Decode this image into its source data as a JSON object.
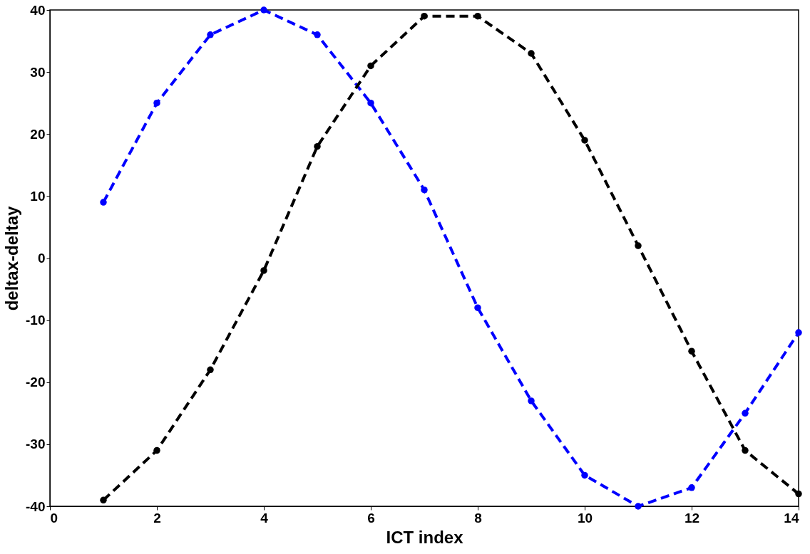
{
  "chart_data": {
    "type": "line",
    "xlabel": "ICT index",
    "ylabel": "deltax-deltay",
    "x": [
      1,
      2,
      3,
      4,
      5,
      6,
      7,
      8,
      9,
      10,
      11,
      12,
      13,
      14
    ],
    "series": [
      {
        "color": "#0000ff",
        "values": [
          9,
          25,
          36,
          40,
          36,
          25,
          11,
          -8,
          -23,
          -35,
          -40,
          -37,
          -25,
          -12
        ]
      },
      {
        "color": "#000000",
        "values": [
          -39,
          -31,
          -18,
          -2,
          18,
          31,
          39,
          39,
          33,
          19,
          2,
          -15,
          -31,
          -38
        ]
      }
    ],
    "xlim": [
      0,
      14
    ],
    "xticks": [
      0,
      2,
      4,
      6,
      8,
      10,
      12,
      14
    ],
    "ylim": [
      -40,
      40
    ],
    "yticks": [
      -40,
      -30,
      -20,
      -10,
      0,
      10,
      20,
      30,
      40
    ],
    "grid": false,
    "marker": "circle",
    "line_style": "dashed"
  }
}
